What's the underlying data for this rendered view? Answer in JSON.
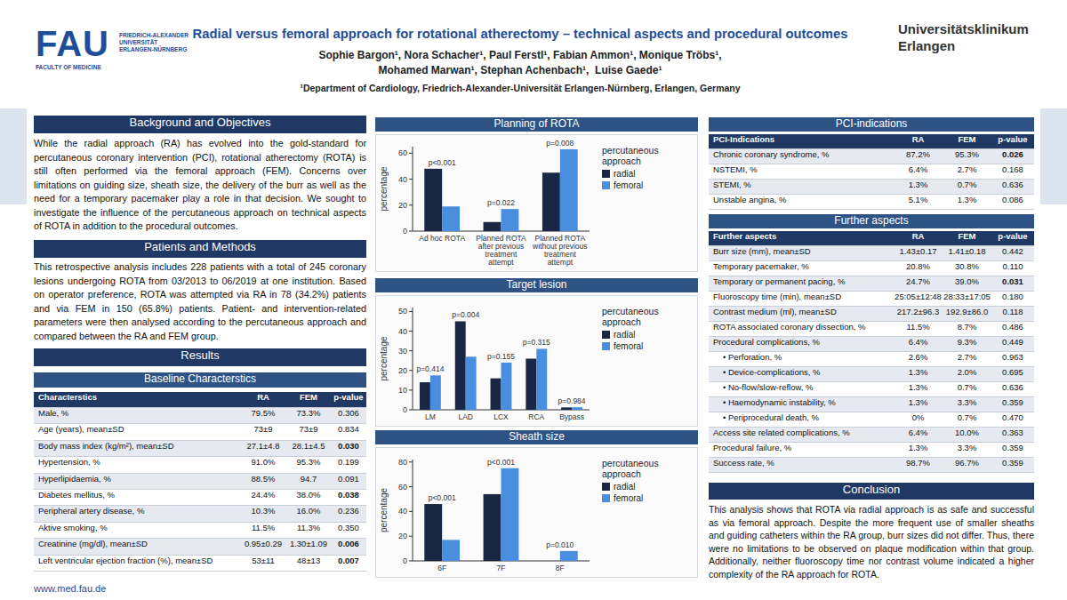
{
  "header": {
    "title": "Radial versus femoral approach for rotational atherectomy – technical aspects and procedural outcomes",
    "authors": [
      "Sophie Bargon¹, Nora Schacher¹, Paul Ferstl¹, Fabian Ammon¹, Monique Tröbs¹,",
      "Mohamed Marwan¹, Stephan Achenbach¹,  Luise Gaede¹"
    ],
    "affiliation": "¹Department of Cardiology, Friedrich-Alexander-Universität Erlangen-Nürnberg, Erlangen, Germany",
    "logo_left": {
      "mark": "FAU",
      "lines": [
        "FRIEDRICH-ALEXANDER",
        "UNIVERSITÄT",
        "ERLANGEN-NÜRNBERG"
      ],
      "faculty": "FACULTY OF MEDICINE"
    },
    "logo_right": [
      "Universitätsklinikum",
      "Erlangen"
    ]
  },
  "background": {
    "title": "Background and Objectives",
    "text": "While the radial approach (RA) has evolved into the gold-standard for percutaneous coronary intervention (PCI), rotational atherectomy (ROTA) is still often performed via the femoral approach (FEM). Concerns over limitations on guiding size, sheath size, the delivery of the burr as well as the need for a temporary pacemaker play a role in that decision. We sought to investigate the influence of the percutaneous approach on technical aspects of ROTA in addition to the procedural outcomes."
  },
  "methods": {
    "title": "Patients and Methods",
    "text": "This retrospective analysis includes 228 patients with a total of 245 coronary lesions undergoing ROTA from 03/2013 to 06/2019 at one institution. Based on operator preference, ROTA was attempted via RA in 78 (34.2%) patients and via FEM in 150 (65.8%) patients. Patient- and intervention-related parameters were then analysed according to the percutaneous approach and compared between the RA and FEM group."
  },
  "results": {
    "title": "Results"
  },
  "baseline": {
    "title": "Baseline Characterstics",
    "columns": [
      "Characterstics",
      "RA",
      "FEM",
      "p-value"
    ],
    "rows": [
      [
        "Male, %",
        "79.5%",
        "73.3%",
        "0.306"
      ],
      [
        "Age (years), mean±SD",
        "73±9",
        "73±9",
        "0.834"
      ],
      [
        "Body mass index (kg/m²), mean±SD",
        "27.1±4.8",
        "28.1±4.5",
        "0.030"
      ],
      [
        "Hypertension, %",
        "91.0%",
        "95.3%",
        "0.199"
      ],
      [
        "Hyperlipidaemia, %",
        "88.5%",
        "94.7",
        "0.091"
      ],
      [
        "Diabetes mellitus, %",
        "24.4%",
        "38.0%",
        "0.038"
      ],
      [
        "Peripheral artery disease, %",
        "10.3%",
        "16.0%",
        "0.236"
      ],
      [
        "Aktive smoking, %",
        "11.5%",
        "11.3%",
        "0.350"
      ],
      [
        "Creatinine (mg/dl), mean±SD",
        "0.95±0.29",
        "1.30±1.09",
        "0.006"
      ],
      [
        "Left ventricular ejection fraction (%), mean±SD",
        "53±11",
        "48±13",
        "0.007"
      ]
    ]
  },
  "pci": {
    "title": "PCI-indications",
    "columns": [
      "PCI-Indications",
      "RA",
      "FEM",
      "p-value"
    ],
    "rows": [
      [
        "Chronic coronary syndrome, %",
        "87.2%",
        "95.3%",
        "0.026"
      ],
      [
        "NSTEMI, %",
        "6.4%",
        "2.7%",
        "0.168"
      ],
      [
        "STEMI, %",
        "1.3%",
        "0.7%",
        "0.636"
      ],
      [
        "Unstable angina, %",
        "5.1%",
        "1.3%",
        "0.086"
      ]
    ]
  },
  "further": {
    "title": "Further aspects",
    "columns": [
      "Further aspects",
      "RA",
      "FEM",
      "p-value"
    ],
    "rows": [
      [
        "Burr size (mm), mean±SD",
        "1.43±0.17",
        "1.41±0.18",
        "0.442"
      ],
      [
        "Temporary pacemaker, %",
        "20.8%",
        "30.8%",
        "0.110"
      ],
      [
        "Temporary or permanent pacing, %",
        "24.7%",
        "39.0%",
        "0.031"
      ],
      [
        "Fluoroscopy time (min), mean±SD",
        "25:05±12:48",
        "28:33±17:05",
        "0.180"
      ],
      [
        "Contrast medium (ml), mean±SD",
        "217.2±96.3",
        "192.9±86.0",
        "0.118"
      ],
      [
        "ROTA associated coronary dissection, %",
        "11.5%",
        "8.7%",
        "0.486"
      ],
      [
        "Procedural complications, %",
        "6.4%",
        "9.3%",
        "0.449"
      ],
      [
        "• Perforation, %",
        "2.6%",
        "2.7%",
        "0.963"
      ],
      [
        "• Device-complications, %",
        "1.3%",
        "2.0%",
        "0.695"
      ],
      [
        "• No-flow/slow-reflow, %",
        "1.3%",
        "0.7%",
        "0.636"
      ],
      [
        "• Haemodynamic instability, %",
        "1.3%",
        "3.3%",
        "0.359"
      ],
      [
        "• Periprocedural death, %",
        "0%",
        "0.7%",
        "0.470"
      ],
      [
        "Access site related complications, %",
        "6.4%",
        "10.0%",
        "0.363"
      ],
      [
        "Procedural failure, %",
        "1.3%",
        "3.3%",
        "0.359"
      ],
      [
        "Success rate, %",
        "98.7%",
        "96.7%",
        "0.359"
      ]
    ]
  },
  "conclusion": {
    "title": "Conclusion",
    "text": "This analysis shows that ROTA via radial approach is as safe and successful as via femoral approach. Despite the more frequent use of smaller sheaths and guiding catheters within the RA group, burr sizes did not differ. Thus, there were no limitations to be observed on plaque modification within that group. Additionally, neither fluoroscopy time nor contrast volume indicated a higher complexity of the RA approach for ROTA."
  },
  "chart_data": [
    {
      "type": "bar",
      "title": "Planning of ROTA",
      "y_label": "percentage",
      "categories": [
        "Ad hoc ROTA",
        "Planned ROTA after previous treatment attempt",
        "Planned ROTA without previous treatment attempt"
      ],
      "series": [
        {
          "name": "radial",
          "color": "#1a2744",
          "values": [
            48,
            7,
            45
          ]
        },
        {
          "name": "femoral",
          "color": "#4a8fdf",
          "values": [
            19,
            17,
            63
          ]
        }
      ],
      "annotations": [
        "p<0.001",
        "p=0.022",
        "p=0.008"
      ],
      "legend_title": "percutaneous approach",
      "legend": "right",
      "ylim": [
        0,
        65
      ],
      "yticks": [
        0,
        20,
        40,
        60
      ],
      "grid": false
    },
    {
      "type": "bar",
      "title": "Target lesion",
      "y_label": "percentage",
      "categories": [
        "LM",
        "LAD",
        "LCX",
        "RCA",
        "Bypass"
      ],
      "series": [
        {
          "name": "radial",
          "color": "#1a2744",
          "values": [
            14,
            45,
            16,
            26,
            1.2
          ]
        },
        {
          "name": "femoral",
          "color": "#4a8fdf",
          "values": [
            17.5,
            27,
            24,
            31,
            1.3
          ]
        }
      ],
      "annotations": [
        "p=0.414",
        "p=0.004",
        "p=0.155",
        "p=0.315",
        "p=0.984"
      ],
      "legend_title": "percutaneous approach",
      "legend": "right",
      "ylim": [
        0,
        52
      ],
      "yticks": [
        0,
        10,
        20,
        30,
        40,
        50
      ],
      "grid": false
    },
    {
      "type": "bar",
      "title": "Sheath size",
      "y_label": "percentage",
      "categories": [
        "6F",
        "7F",
        "8F"
      ],
      "series": [
        {
          "name": "radial",
          "color": "#1a2744",
          "values": [
            46,
            54,
            0
          ]
        },
        {
          "name": "femoral",
          "color": "#4a8fdf",
          "values": [
            17,
            75,
            8
          ]
        }
      ],
      "annotations": [
        "p<0.001",
        "p<0.001",
        "p=0.010"
      ],
      "legend_title": "percutaneous approach",
      "legend": "right",
      "ylim": [
        0,
        82
      ],
      "yticks": [
        0,
        20,
        40,
        60,
        80
      ],
      "grid": false
    }
  ],
  "footer": "www.med.fau.de"
}
